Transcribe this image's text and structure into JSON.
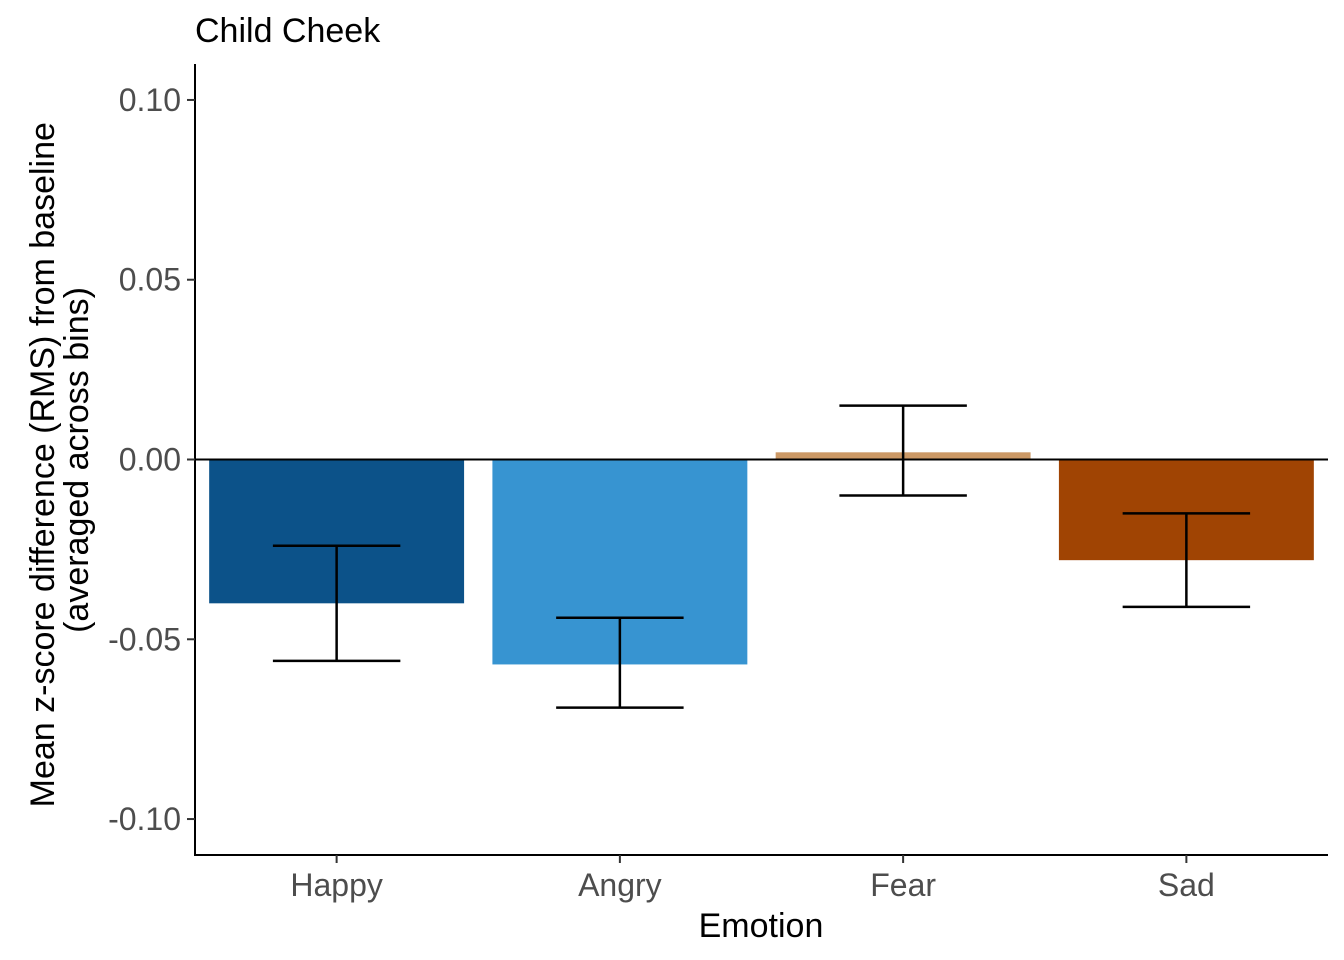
{
  "chart_data": {
    "type": "bar",
    "title": "Child Cheek",
    "xlabel": "Emotion",
    "ylabel_lines": [
      "Mean z-score difference (RMS) from baseline",
      "(averaged across bins)"
    ],
    "categories": [
      "Happy",
      "Angry",
      "Fear",
      "Sad"
    ],
    "values": [
      -0.04,
      -0.057,
      0.002,
      -0.028
    ],
    "error_low": [
      -0.056,
      -0.069,
      -0.01,
      -0.041
    ],
    "error_high": [
      -0.024,
      -0.044,
      0.015,
      -0.015
    ],
    "colors": [
      "#0c5289",
      "#3794d1",
      "#cc9966",
      "#a04403"
    ],
    "ylim": [
      -0.11,
      0.11
    ],
    "yticks": [
      -0.1,
      -0.05,
      0.0,
      0.05,
      0.1
    ],
    "ytick_labels": [
      "-0.10",
      "-0.05",
      "0.00",
      "0.05",
      "0.10"
    ],
    "zero_line": true,
    "grid": false,
    "legend": "none"
  }
}
